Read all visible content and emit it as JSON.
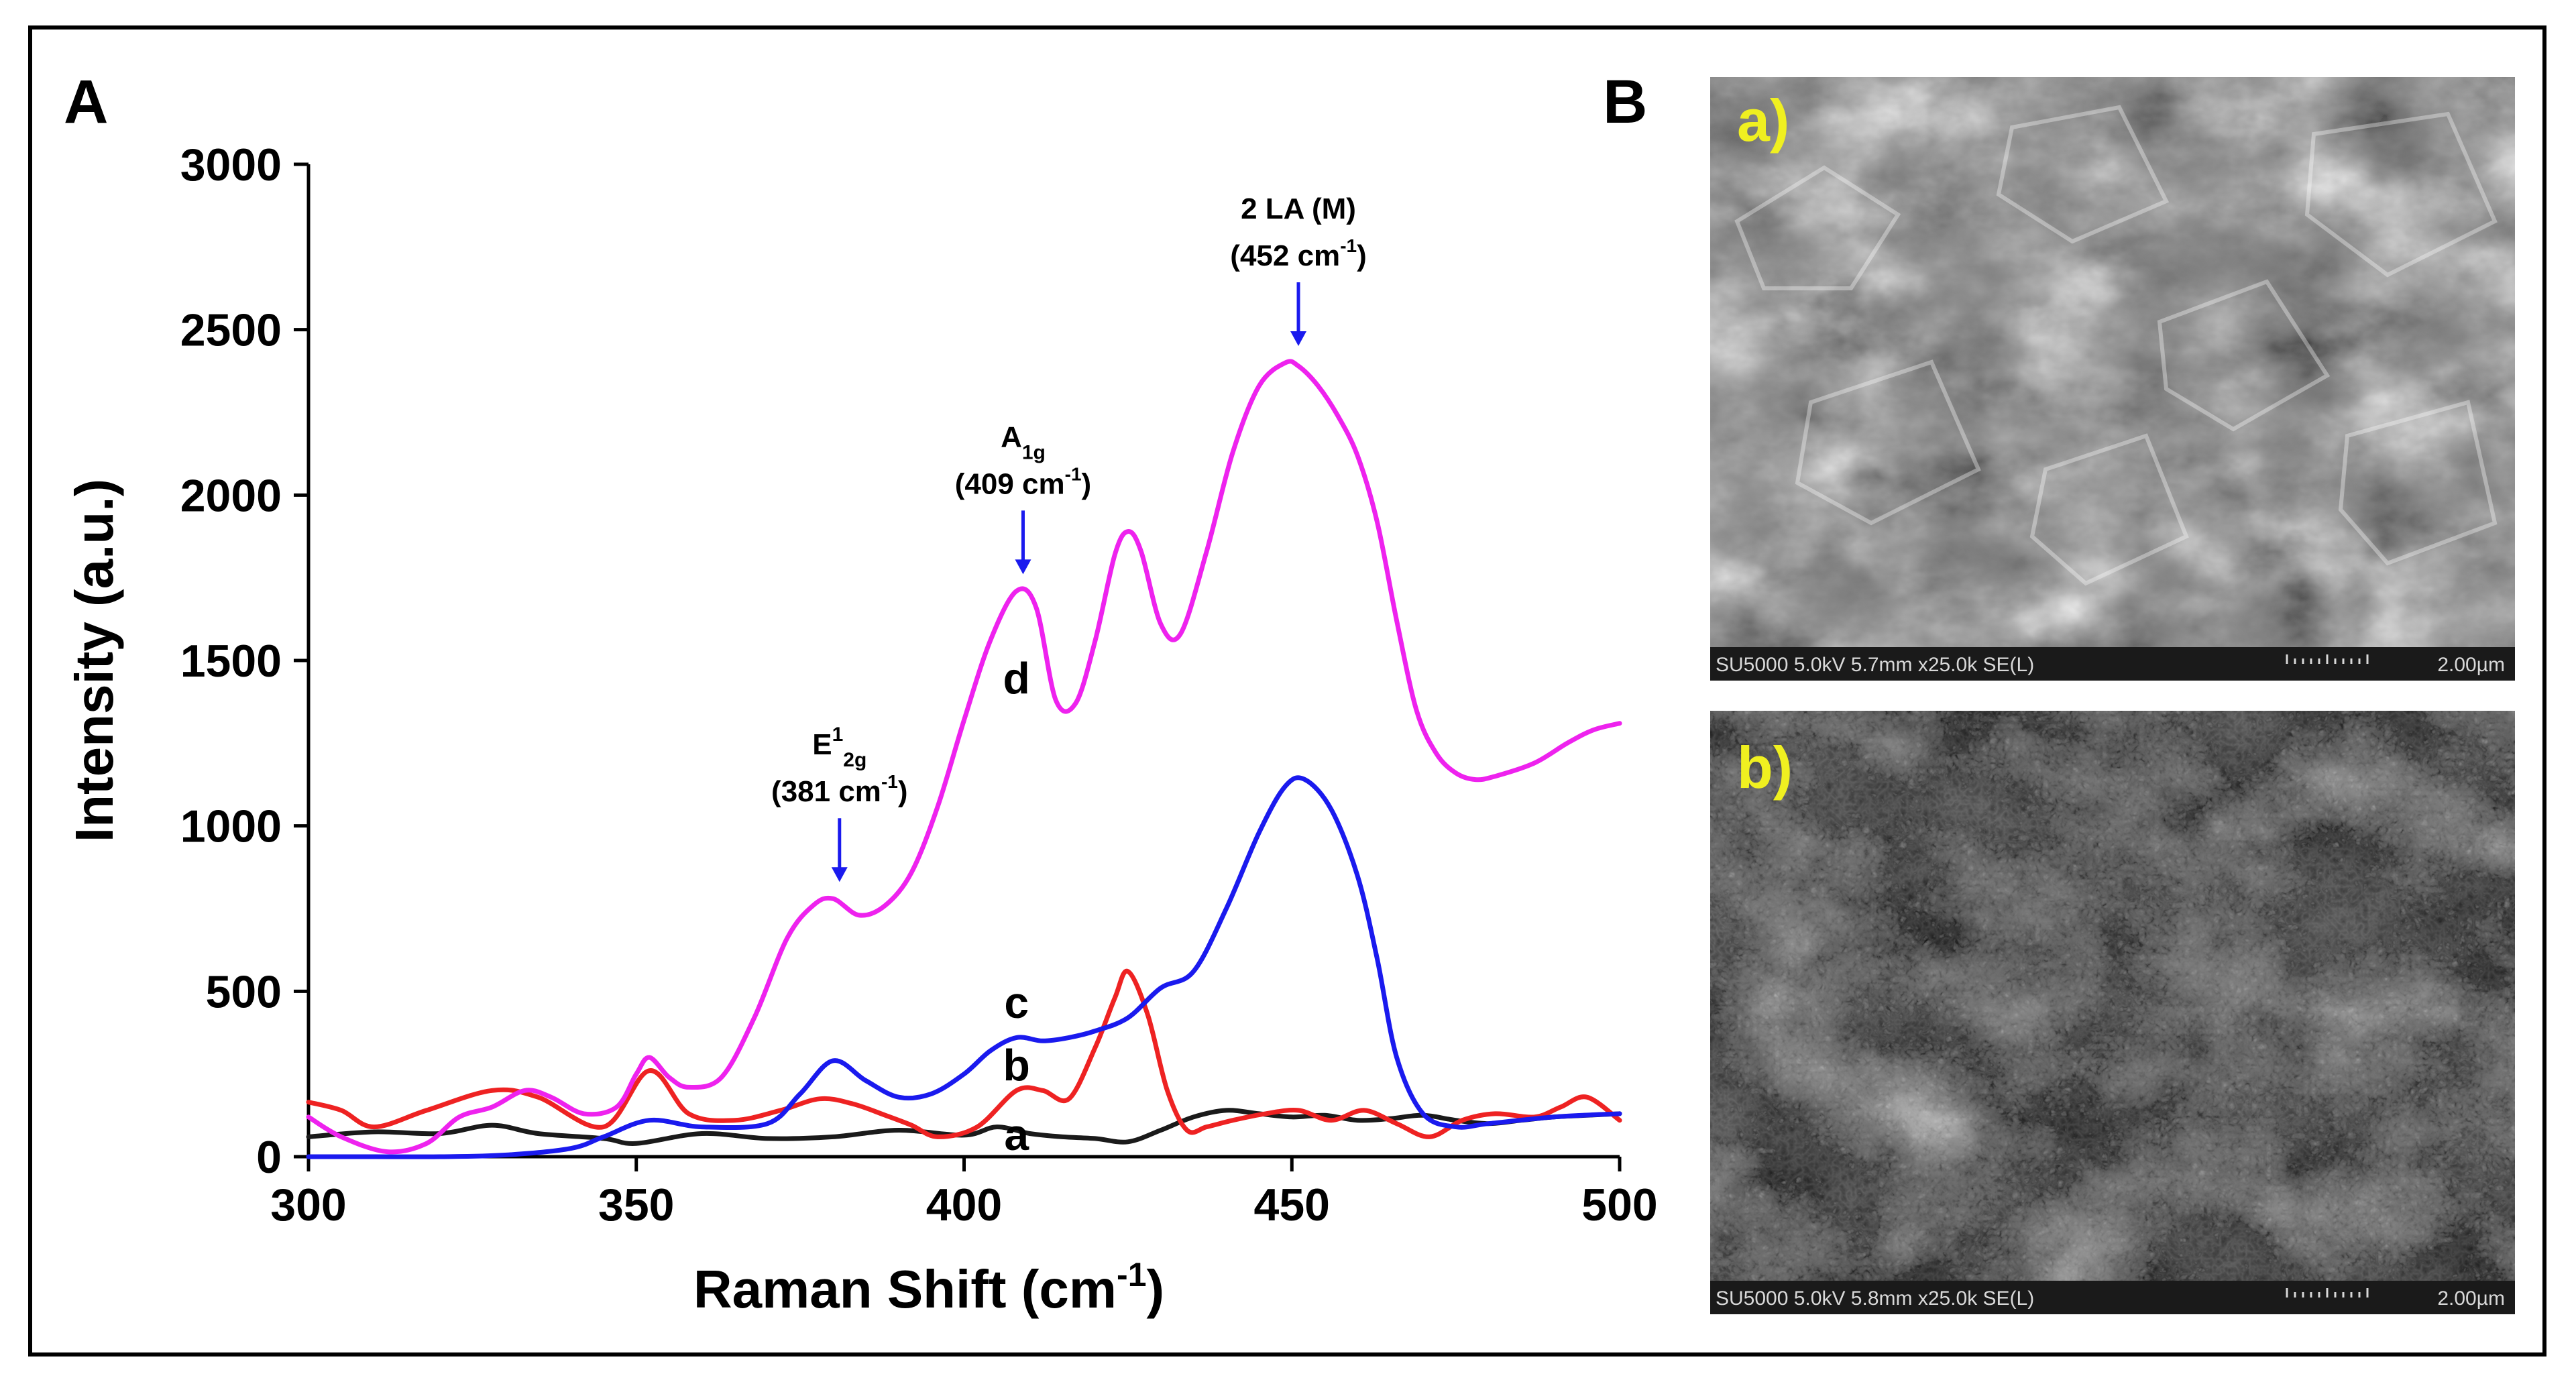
{
  "panel_a_label": "A",
  "panel_b_label": "B",
  "chart_data": {
    "type": "line",
    "xlabel_main": "Raman Shift (cm",
    "xlabel_sup": "-1",
    "xlabel_end": ")",
    "ylabel": "Intensity (a.u.)",
    "xlim": [
      300,
      500
    ],
    "ylim": [
      0,
      3000
    ],
    "xticks": [
      300,
      350,
      400,
      450,
      500
    ],
    "yticks": [
      0,
      500,
      1000,
      1500,
      2000,
      2500,
      3000
    ],
    "colors": {
      "a": "#1a1a1a",
      "b": "#ee2222",
      "c": "#1a1aee",
      "d": "#ee22ee",
      "arrow": "#1a1aee"
    },
    "series": [
      {
        "name": "a",
        "label": "a",
        "x": [
          300,
          310,
          320,
          328,
          335,
          345,
          350,
          360,
          370,
          380,
          390,
          400,
          405,
          410,
          415,
          420,
          425,
          430,
          435,
          440,
          445,
          450,
          455,
          460,
          465,
          470,
          475,
          480,
          485,
          490,
          495,
          500
        ],
        "y": [
          60,
          75,
          70,
          95,
          70,
          55,
          40,
          70,
          55,
          60,
          80,
          65,
          90,
          70,
          60,
          55,
          45,
          80,
          120,
          140,
          130,
          120,
          125,
          110,
          115,
          125,
          110,
          100,
          110,
          120,
          125,
          130
        ]
      },
      {
        "name": "b",
        "label": "b",
        "x": [
          300,
          305,
          310,
          318,
          328,
          335,
          345,
          352,
          358,
          365,
          372,
          378,
          383,
          388,
          392,
          396,
          402,
          408,
          412,
          416,
          420,
          423,
          425,
          428,
          431,
          434,
          437,
          441,
          446,
          451,
          456,
          461,
          466,
          471,
          476,
          481,
          487,
          491,
          495,
          500
        ],
        "y": [
          165,
          140,
          90,
          140,
          200,
          180,
          90,
          260,
          130,
          110,
          140,
          175,
          160,
          125,
          95,
          60,
          90,
          200,
          200,
          175,
          330,
          480,
          560,
          430,
          200,
          80,
          90,
          110,
          130,
          140,
          110,
          140,
          100,
          60,
          110,
          130,
          120,
          150,
          180,
          110
        ]
      },
      {
        "name": "c",
        "label": "c",
        "x": [
          300,
          310,
          320,
          330,
          340,
          345,
          352,
          360,
          370,
          375,
          380,
          385,
          390,
          395,
          400,
          404,
          408,
          412,
          416,
          420,
          425,
          430,
          435,
          440,
          445,
          449,
          452,
          456,
          460,
          463,
          466,
          470,
          475,
          480,
          490,
          500
        ],
        "y": [
          0,
          0,
          0,
          5,
          25,
          60,
          110,
          90,
          100,
          190,
          290,
          230,
          180,
          190,
          250,
          320,
          360,
          350,
          360,
          380,
          420,
          510,
          560,
          750,
          980,
          1120,
          1140,
          1050,
          850,
          600,
          300,
          130,
          90,
          100,
          120,
          130
        ]
      },
      {
        "name": "d",
        "label": "d",
        "x": [
          300,
          305,
          312,
          318,
          323,
          328,
          333,
          337,
          342,
          347,
          350,
          352,
          355,
          358,
          363,
          368,
          373,
          377,
          380,
          384,
          388,
          392,
          396,
          400,
          404,
          408,
          411,
          414,
          417,
          420,
          423,
          425,
          427,
          430,
          433,
          437,
          441,
          445,
          449,
          451,
          454,
          457,
          460,
          463,
          466,
          469,
          472,
          475,
          478,
          481,
          487,
          492,
          496,
          500
        ],
        "y": [
          120,
          60,
          15,
          40,
          120,
          150,
          200,
          180,
          130,
          150,
          250,
          300,
          240,
          210,
          240,
          420,
          660,
          760,
          780,
          730,
          760,
          860,
          1060,
          1320,
          1560,
          1710,
          1660,
          1380,
          1370,
          1560,
          1820,
          1890,
          1830,
          1610,
          1580,
          1830,
          2130,
          2330,
          2400,
          2390,
          2330,
          2240,
          2120,
          1920,
          1620,
          1350,
          1220,
          1160,
          1140,
          1150,
          1190,
          1250,
          1290,
          1310
        ]
      }
    ],
    "annotations": [
      {
        "line1": "E",
        "line1_sup": "1",
        "line1_sub": "2g",
        "line2": "(381 cm",
        "line2_sup": "-1",
        "line2_end": ")",
        "x": 381,
        "y": 780
      },
      {
        "line1": "A",
        "line1_sup": "",
        "line1_sub": "1g",
        "line2": "(409 cm",
        "line2_sup": "-1",
        "line2_end": ")",
        "x": 409,
        "y": 1710
      },
      {
        "line1": "2 LA (M)",
        "line1_sup": "",
        "line1_sub": "",
        "line2": "(452 cm",
        "line2_sup": "-1",
        "line2_end": ")",
        "x": 451,
        "y": 2400
      }
    ],
    "curve_labels": [
      {
        "text": "d",
        "x": 408,
        "y": 1400
      },
      {
        "text": "c",
        "x": 408,
        "y": 420
      },
      {
        "text": "b",
        "x": 408,
        "y": 230
      },
      {
        "text": "a",
        "x": 408,
        "y": 20
      }
    ]
  },
  "sem_images": [
    {
      "label": "a)",
      "caption": "SU5000 5.0kV 5.7mm x25.0k SE(L)",
      "scale_text": "2.00µm"
    },
    {
      "label": "b)",
      "caption": "SU5000 5.0kV 5.8mm x25.0k SE(L)",
      "scale_text": "2.00µm"
    }
  ],
  "label_color": "#f0f020"
}
